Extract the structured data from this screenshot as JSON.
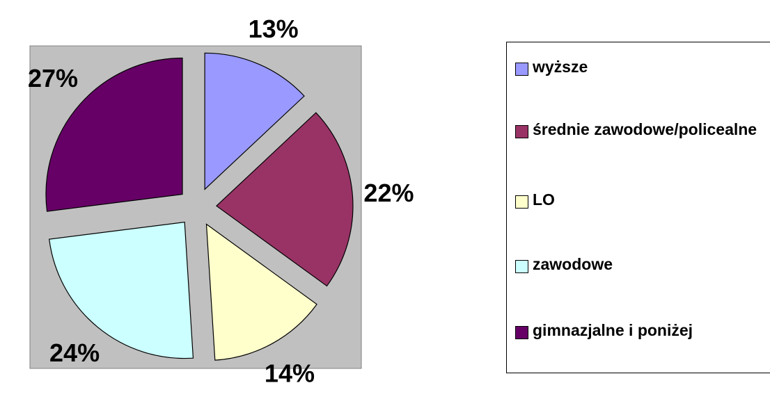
{
  "chart_data": {
    "type": "pie",
    "categories": [
      "wyższe",
      "średnie zawodowe/policealne",
      "LO",
      "zawodowe",
      "gimnazjalne i poniżej"
    ],
    "values": [
      13,
      22,
      14,
      24,
      27
    ],
    "value_labels": [
      "13%",
      "22%",
      "14%",
      "24%",
      "27%"
    ],
    "colors": [
      "#9999ff",
      "#993366",
      "#ffffcc",
      "#ccffff",
      "#660066"
    ],
    "exploded": true,
    "legend": "right"
  }
}
